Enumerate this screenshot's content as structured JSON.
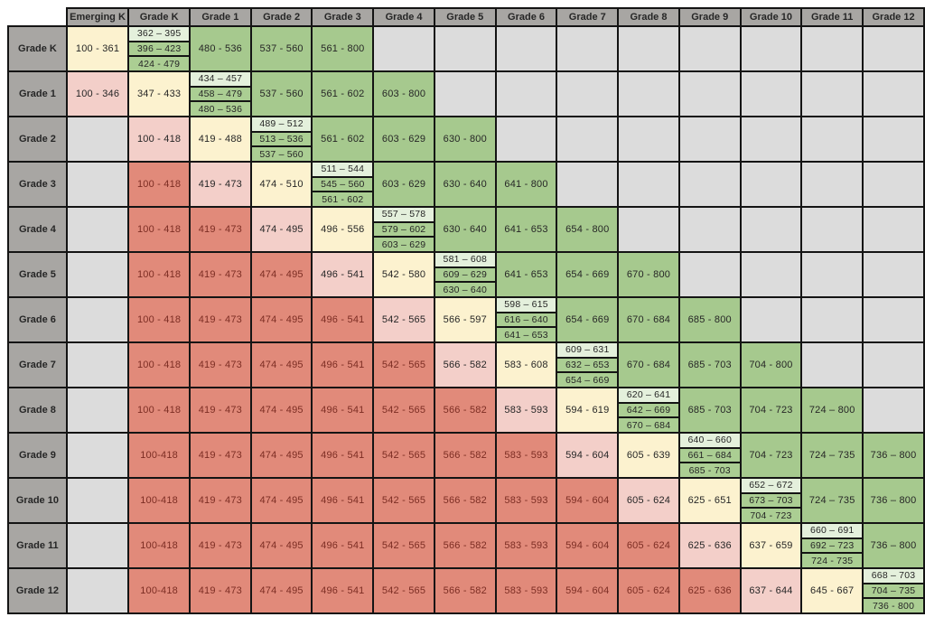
{
  "colors": {
    "header_bg": "#a8a6a3",
    "empty_bg": "#dcdcdc",
    "red_bg": "#e18a7a",
    "pink_bg": "#f3cfc9",
    "yellow_bg": "#fcf2cf",
    "green_bg": "#a6c98e",
    "stack_top_bg": "#e4f0dc",
    "stack_green_bg": "#abce93",
    "border": "#141414",
    "text": "#262626",
    "red_text": "#7c2d23"
  },
  "table": {
    "corner_label": "",
    "column_headers": [
      "Emerging K",
      "Grade K",
      "Grade 1",
      "Grade 2",
      "Grade 3",
      "Grade 4",
      "Grade 5",
      "Grade 6",
      "Grade 7",
      "Grade 8",
      "Grade 9",
      "Grade 10",
      "Grade 11",
      "Grade 12"
    ],
    "rows": [
      {
        "label": "Grade K",
        "cells": [
          {
            "type": "yellow",
            "text": "100 - 361"
          },
          {
            "type": "stack",
            "parts": [
              "362 – 395",
              "396 – 423",
              "424 - 479"
            ]
          },
          {
            "type": "green",
            "text": "480 - 536"
          },
          {
            "type": "green",
            "text": "537 - 560"
          },
          {
            "type": "green",
            "text": "561 - 800"
          },
          {
            "type": "empty"
          },
          {
            "type": "empty"
          },
          {
            "type": "empty"
          },
          {
            "type": "empty"
          },
          {
            "type": "empty"
          },
          {
            "type": "empty"
          },
          {
            "type": "empty"
          },
          {
            "type": "empty"
          },
          {
            "type": "empty"
          }
        ]
      },
      {
        "label": "Grade 1",
        "cells": [
          {
            "type": "pink",
            "text": "100 - 346"
          },
          {
            "type": "yellow",
            "text": "347 - 433"
          },
          {
            "type": "stack",
            "parts": [
              "434 – 457",
              "458 – 479",
              "480 – 536"
            ]
          },
          {
            "type": "green",
            "text": "537 - 560"
          },
          {
            "type": "green",
            "text": "561 - 602"
          },
          {
            "type": "green",
            "text": "603 - 800"
          },
          {
            "type": "empty"
          },
          {
            "type": "empty"
          },
          {
            "type": "empty"
          },
          {
            "type": "empty"
          },
          {
            "type": "empty"
          },
          {
            "type": "empty"
          },
          {
            "type": "empty"
          },
          {
            "type": "empty"
          }
        ]
      },
      {
        "label": "Grade 2",
        "cells": [
          {
            "type": "empty"
          },
          {
            "type": "pink",
            "text": "100 - 418"
          },
          {
            "type": "yellow",
            "text": "419 - 488"
          },
          {
            "type": "stack",
            "parts": [
              "489 – 512",
              "513 – 536",
              "537 – 560"
            ]
          },
          {
            "type": "green",
            "text": "561 - 602"
          },
          {
            "type": "green",
            "text": "603 - 629"
          },
          {
            "type": "green",
            "text": "630 - 800"
          },
          {
            "type": "empty"
          },
          {
            "type": "empty"
          },
          {
            "type": "empty"
          },
          {
            "type": "empty"
          },
          {
            "type": "empty"
          },
          {
            "type": "empty"
          },
          {
            "type": "empty"
          }
        ]
      },
      {
        "label": "Grade 3",
        "cells": [
          {
            "type": "empty"
          },
          {
            "type": "red",
            "text": "100 - 418"
          },
          {
            "type": "pink",
            "text": "419 - 473"
          },
          {
            "type": "yellow",
            "text": "474 - 510"
          },
          {
            "type": "stack",
            "parts": [
              "511 – 544",
              "545 – 560",
              "561 - 602"
            ]
          },
          {
            "type": "green",
            "text": "603 - 629"
          },
          {
            "type": "green",
            "text": "630 - 640"
          },
          {
            "type": "green",
            "text": "641 - 800"
          },
          {
            "type": "empty"
          },
          {
            "type": "empty"
          },
          {
            "type": "empty"
          },
          {
            "type": "empty"
          },
          {
            "type": "empty"
          },
          {
            "type": "empty"
          }
        ]
      },
      {
        "label": "Grade 4",
        "cells": [
          {
            "type": "empty"
          },
          {
            "type": "red",
            "text": "100 - 418"
          },
          {
            "type": "red",
            "text": "419 - 473"
          },
          {
            "type": "pink",
            "text": "474 - 495"
          },
          {
            "type": "yellow",
            "text": "496 - 556"
          },
          {
            "type": "stack",
            "parts": [
              "557 – 578",
              "579 – 602",
              "603 – 629"
            ]
          },
          {
            "type": "green",
            "text": "630 - 640"
          },
          {
            "type": "green",
            "text": "641 - 653"
          },
          {
            "type": "green",
            "text": "654 - 800"
          },
          {
            "type": "empty"
          },
          {
            "type": "empty"
          },
          {
            "type": "empty"
          },
          {
            "type": "empty"
          },
          {
            "type": "empty"
          }
        ]
      },
      {
        "label": "Grade 5",
        "cells": [
          {
            "type": "empty"
          },
          {
            "type": "red",
            "text": "100 - 418"
          },
          {
            "type": "red",
            "text": "419 - 473"
          },
          {
            "type": "red",
            "text": "474 - 495"
          },
          {
            "type": "pink",
            "text": "496 - 541"
          },
          {
            "type": "yellow",
            "text": "542 - 580"
          },
          {
            "type": "stack",
            "parts": [
              "581 – 608",
              "609 – 629",
              "630 – 640"
            ]
          },
          {
            "type": "green",
            "text": "641 - 653"
          },
          {
            "type": "green",
            "text": "654 - 669"
          },
          {
            "type": "green",
            "text": "670 - 800"
          },
          {
            "type": "empty"
          },
          {
            "type": "empty"
          },
          {
            "type": "empty"
          },
          {
            "type": "empty"
          }
        ]
      },
      {
        "label": "Grade 6",
        "cells": [
          {
            "type": "empty"
          },
          {
            "type": "red",
            "text": "100 - 418"
          },
          {
            "type": "red",
            "text": "419 - 473"
          },
          {
            "type": "red",
            "text": "474 - 495"
          },
          {
            "type": "red",
            "text": "496 - 541"
          },
          {
            "type": "pink",
            "text": "542 - 565"
          },
          {
            "type": "yellow",
            "text": "566 - 597"
          },
          {
            "type": "stack",
            "parts": [
              "598 – 615",
              "616 – 640",
              "641 – 653"
            ]
          },
          {
            "type": "green",
            "text": "654 - 669"
          },
          {
            "type": "green",
            "text": "670 - 684"
          },
          {
            "type": "green",
            "text": "685 - 800"
          },
          {
            "type": "empty"
          },
          {
            "type": "empty"
          },
          {
            "type": "empty"
          }
        ]
      },
      {
        "label": "Grade 7",
        "cells": [
          {
            "type": "empty"
          },
          {
            "type": "red",
            "text": "100 - 418"
          },
          {
            "type": "red",
            "text": "419 - 473"
          },
          {
            "type": "red",
            "text": "474 - 495"
          },
          {
            "type": "red",
            "text": "496 - 541"
          },
          {
            "type": "red",
            "text": "542 - 565"
          },
          {
            "type": "pink",
            "text": "566 - 582"
          },
          {
            "type": "yellow",
            "text": "583 - 608"
          },
          {
            "type": "stack",
            "parts": [
              "609 – 631",
              "632 – 653",
              "654 – 669"
            ]
          },
          {
            "type": "green",
            "text": "670 - 684"
          },
          {
            "type": "green",
            "text": "685 - 703"
          },
          {
            "type": "green",
            "text": "704 - 800"
          },
          {
            "type": "empty"
          },
          {
            "type": "empty"
          }
        ]
      },
      {
        "label": "Grade 8",
        "cells": [
          {
            "type": "empty"
          },
          {
            "type": "red",
            "text": "100 - 418"
          },
          {
            "type": "red",
            "text": "419 - 473"
          },
          {
            "type": "red",
            "text": "474 - 495"
          },
          {
            "type": "red",
            "text": "496 - 541"
          },
          {
            "type": "red",
            "text": "542 - 565"
          },
          {
            "type": "red",
            "text": "566 - 582"
          },
          {
            "type": "pink",
            "text": "583 - 593"
          },
          {
            "type": "yellow",
            "text": "594 - 619"
          },
          {
            "type": "stack",
            "parts": [
              "620 – 641",
              "642 – 669",
              "670 – 684"
            ]
          },
          {
            "type": "green",
            "text": "685 - 703"
          },
          {
            "type": "green",
            "text": "704 - 723"
          },
          {
            "type": "green",
            "text": "724 – 800"
          },
          {
            "type": "empty"
          }
        ]
      },
      {
        "label": "Grade 9",
        "cells": [
          {
            "type": "empty"
          },
          {
            "type": "red",
            "text": "100-418"
          },
          {
            "type": "red",
            "text": "419 - 473"
          },
          {
            "type": "red",
            "text": "474 - 495"
          },
          {
            "type": "red",
            "text": "496 - 541"
          },
          {
            "type": "red",
            "text": "542 - 565"
          },
          {
            "type": "red",
            "text": "566 - 582"
          },
          {
            "type": "red",
            "text": "583 - 593"
          },
          {
            "type": "pink",
            "text": "594 - 604"
          },
          {
            "type": "yellow",
            "text": "605 - 639"
          },
          {
            "type": "stack",
            "parts": [
              "640 – 660",
              "661 – 684",
              "685 - 703"
            ]
          },
          {
            "type": "green",
            "text": "704 - 723"
          },
          {
            "type": "green",
            "text": "724 – 735"
          },
          {
            "type": "green",
            "text": "736 – 800"
          }
        ]
      },
      {
        "label": "Grade 10",
        "cells": [
          {
            "type": "empty"
          },
          {
            "type": "red",
            "text": "100-418"
          },
          {
            "type": "red",
            "text": "419 - 473"
          },
          {
            "type": "red",
            "text": "474 - 495"
          },
          {
            "type": "red",
            "text": "496 - 541"
          },
          {
            "type": "red",
            "text": "542 - 565"
          },
          {
            "type": "red",
            "text": "566 - 582"
          },
          {
            "type": "red",
            "text": "583 - 593"
          },
          {
            "type": "red",
            "text": "594 - 604"
          },
          {
            "type": "pink",
            "text": "605 - 624"
          },
          {
            "type": "yellow",
            "text": "625 - 651"
          },
          {
            "type": "stack",
            "parts": [
              "652 – 672",
              "673 – 703",
              "704 - 723"
            ]
          },
          {
            "type": "green",
            "text": "724 – 735"
          },
          {
            "type": "green",
            "text": "736 – 800"
          }
        ]
      },
      {
        "label": "Grade 11",
        "cells": [
          {
            "type": "empty"
          },
          {
            "type": "red",
            "text": "100-418"
          },
          {
            "type": "red",
            "text": "419 - 473"
          },
          {
            "type": "red",
            "text": "474 - 495"
          },
          {
            "type": "red",
            "text": "496 - 541"
          },
          {
            "type": "red",
            "text": "542 - 565"
          },
          {
            "type": "red",
            "text": "566 - 582"
          },
          {
            "type": "red",
            "text": "583 - 593"
          },
          {
            "type": "red",
            "text": "594 - 604"
          },
          {
            "type": "red",
            "text": "605 - 624"
          },
          {
            "type": "pink",
            "text": "625 - 636"
          },
          {
            "type": "yellow",
            "text": "637 - 659"
          },
          {
            "type": "stack",
            "parts": [
              "660 – 691",
              "692 – 723",
              "724 - 735"
            ]
          },
          {
            "type": "green",
            "text": "736 – 800"
          }
        ]
      },
      {
        "label": "Grade 12",
        "cells": [
          {
            "type": "empty"
          },
          {
            "type": "red",
            "text": "100-418"
          },
          {
            "type": "red",
            "text": "419 - 473"
          },
          {
            "type": "red",
            "text": "474 - 495"
          },
          {
            "type": "red",
            "text": "496 - 541"
          },
          {
            "type": "red",
            "text": "542 - 565"
          },
          {
            "type": "red",
            "text": "566 - 582"
          },
          {
            "type": "red",
            "text": "583 - 593"
          },
          {
            "type": "red",
            "text": "594 - 604"
          },
          {
            "type": "red",
            "text": "605 - 624"
          },
          {
            "type": "red",
            "text": "625 - 636"
          },
          {
            "type": "pink",
            "text": "637 - 644"
          },
          {
            "type": "yellow",
            "text": "645 - 667"
          },
          {
            "type": "stack",
            "parts": [
              "668 – 703",
              "704 – 735",
              "736 - 800"
            ]
          }
        ]
      }
    ]
  }
}
